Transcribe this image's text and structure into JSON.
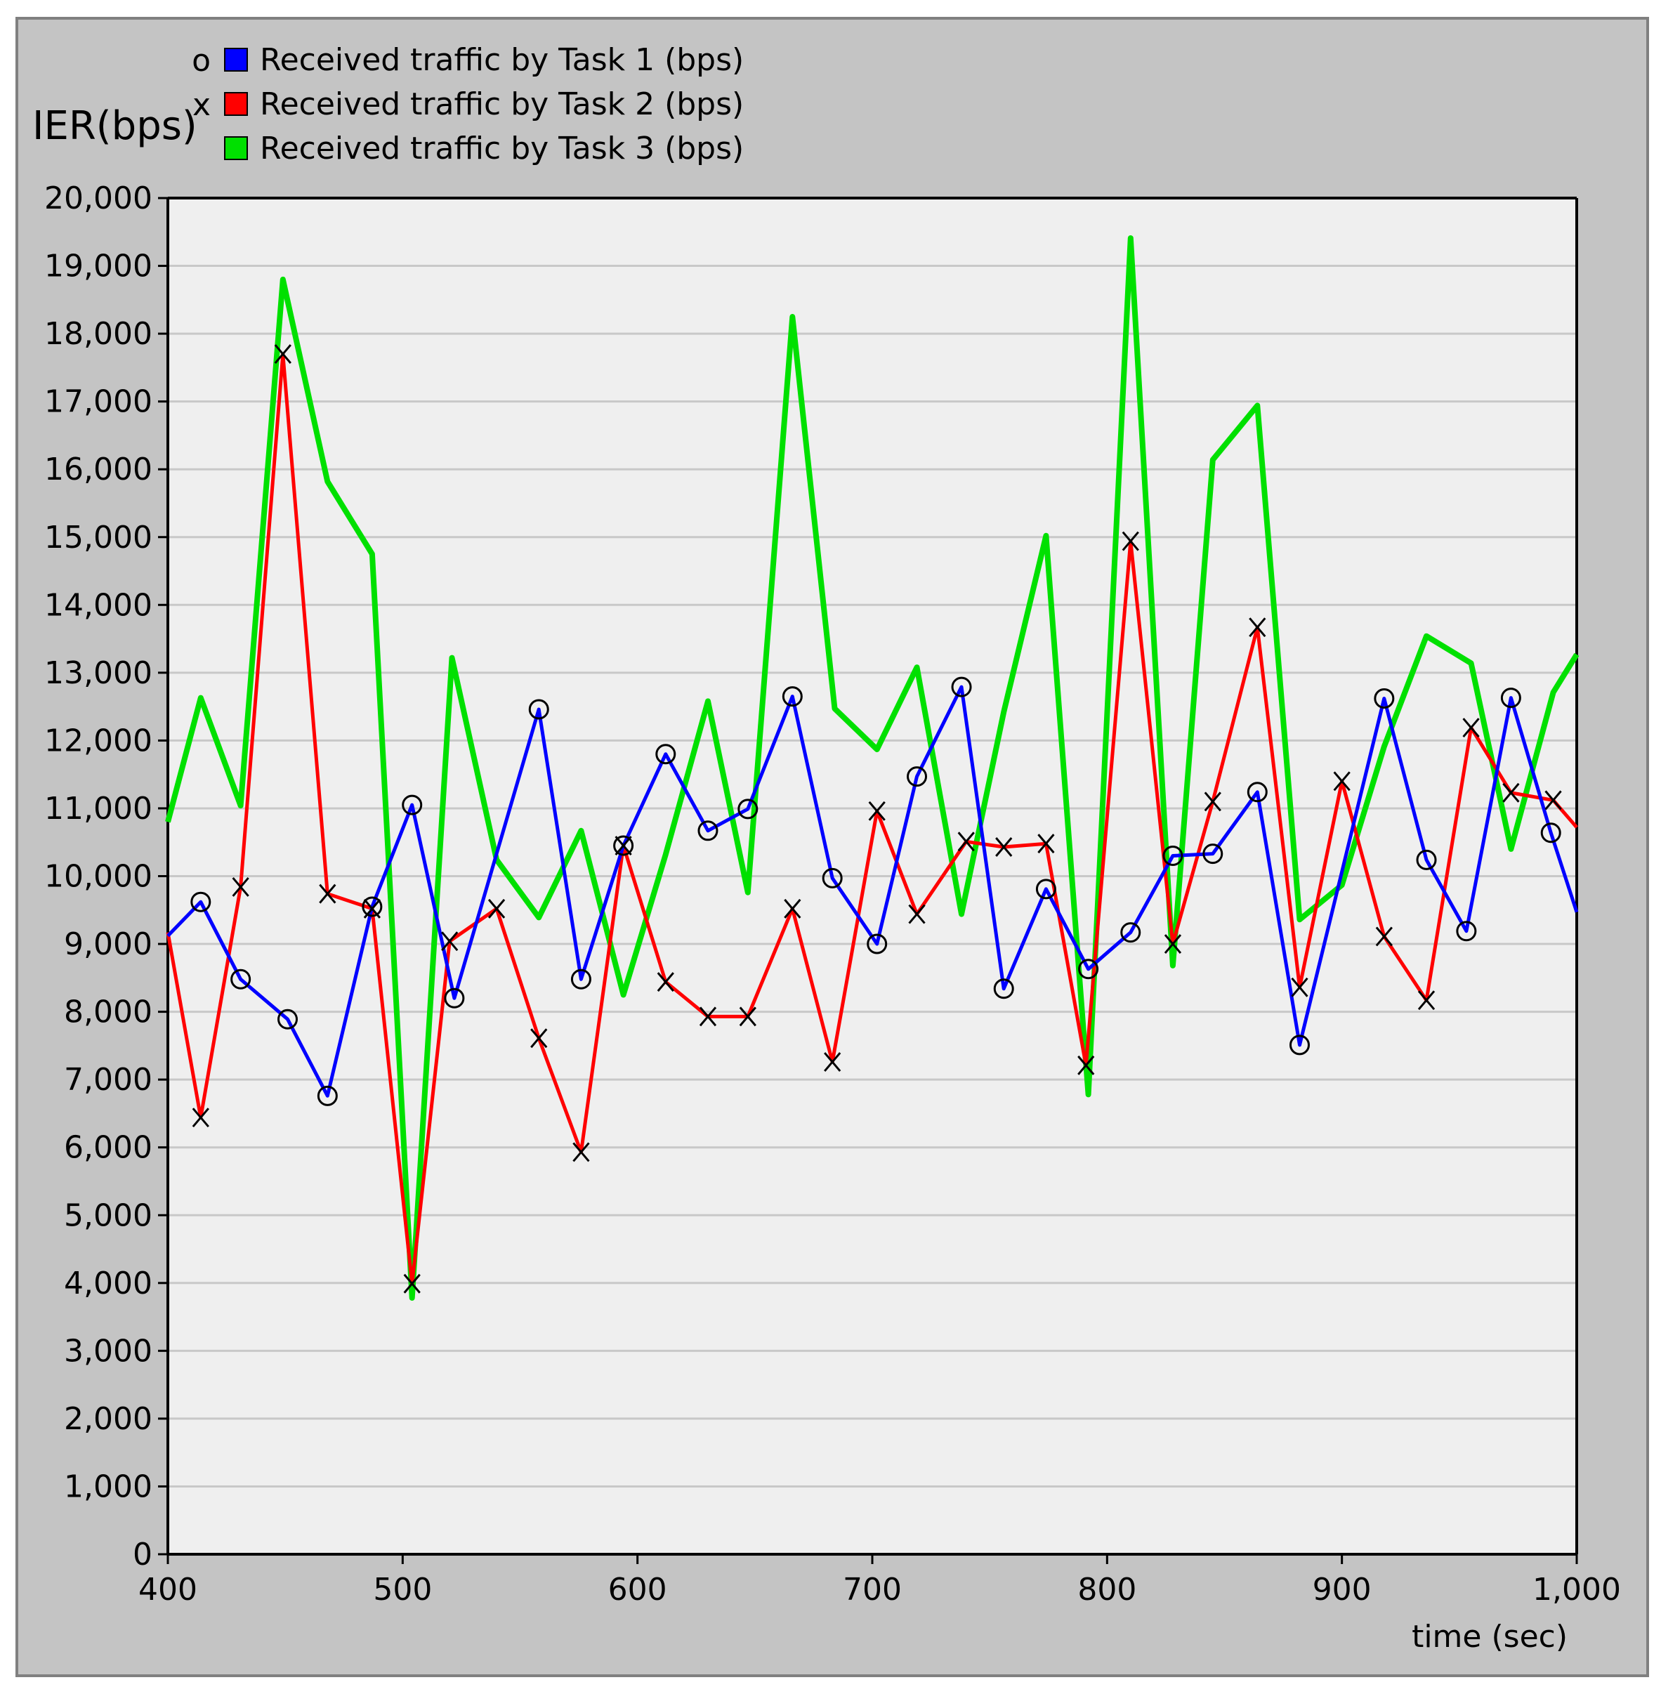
{
  "chart_data": {
    "type": "line",
    "y_axis_label": "IER(bps)",
    "x_axis_label": "time (sec)",
    "xlim": [
      400,
      1000
    ],
    "xticks": [
      400,
      500,
      600,
      700,
      800,
      900,
      {
        "value": 1000,
        "label": "1,000"
      }
    ],
    "ylim": [
      0,
      20000
    ],
    "yticks": [
      0,
      {
        "value": 1000,
        "label": "1,000"
      },
      {
        "value": 2000,
        "label": "2,000"
      },
      {
        "value": 3000,
        "label": "3,000"
      },
      {
        "value": 4000,
        "label": "4,000"
      },
      {
        "value": 5000,
        "label": "5,000"
      },
      {
        "value": 6000,
        "label": "6,000"
      },
      {
        "value": 7000,
        "label": "7,000"
      },
      {
        "value": 8000,
        "label": "8,000"
      },
      {
        "value": 9000,
        "label": "9,000"
      },
      {
        "value": 10000,
        "label": "10,000"
      },
      {
        "value": 11000,
        "label": "11,000"
      },
      {
        "value": 12000,
        "label": "12,000"
      },
      {
        "value": 13000,
        "label": "13,000"
      },
      {
        "value": 14000,
        "label": "14,000"
      },
      {
        "value": 15000,
        "label": "15,000"
      },
      {
        "value": 16000,
        "label": "16,000"
      },
      {
        "value": 17000,
        "label": "17,000"
      },
      {
        "value": 18000,
        "label": "18,000"
      },
      {
        "value": 19000,
        "label": "19,000"
      },
      {
        "value": 20000,
        "label": "20,000"
      }
    ],
    "grid": true,
    "series": [
      {
        "name": "Received traffic by Task 3 (bps)",
        "color": "#00e000",
        "x": [
          400,
          414,
          431,
          449,
          468,
          487,
          504,
          521,
          540,
          558,
          576,
          594,
          612,
          630,
          647,
          666,
          684,
          702,
          719,
          738,
          756,
          774,
          792,
          810,
          828,
          845,
          864,
          882,
          900,
          918,
          936,
          955,
          972,
          990,
          1000
        ],
        "values": [
          10800,
          12630,
          11040,
          18800,
          15820,
          14750,
          3780,
          13220,
          10240,
          9390,
          10670,
          8250,
          10320,
          12580,
          9760,
          18250,
          12470,
          11870,
          13080,
          9440,
          12420,
          15020,
          6780,
          19410,
          8680,
          16140,
          16940,
          9360,
          9870,
          11910,
          13540,
          13140,
          10400,
          12710,
          13270
        ]
      },
      {
        "name": "Received traffic by Task 2 (bps)",
        "color": "#ff0000",
        "marker": "x",
        "x": [
          400,
          414,
          431,
          449,
          468,
          487,
          504,
          520,
          540,
          558,
          576,
          594,
          612,
          630,
          647,
          666,
          683,
          702,
          719,
          740,
          756,
          774,
          791,
          810,
          828,
          845,
          864,
          882,
          900,
          918,
          936,
          955,
          972,
          990,
          1000
        ],
        "values": [
          9170,
          6440,
          9840,
          17700,
          9740,
          9520,
          3990,
          9040,
          9520,
          7610,
          5930,
          10450,
          8440,
          7930,
          7930,
          9520,
          7260,
          10960,
          9440,
          10510,
          10430,
          10480,
          7210,
          14940,
          9000,
          11100,
          13670,
          8360,
          11400,
          9110,
          8170,
          12190,
          11230,
          11120,
          10720
        ]
      },
      {
        "name": "Received traffic by Task 1 (bps)",
        "color": "#0000ff",
        "marker": "o",
        "x": [
          400,
          414,
          431,
          451,
          468,
          487,
          504,
          522,
          558,
          576,
          594,
          612,
          630,
          647,
          666,
          683,
          702,
          719,
          738,
          756,
          774,
          792,
          810,
          828,
          845,
          864,
          882,
          918,
          936,
          953,
          972,
          989,
          1000
        ],
        "values": [
          9120,
          9620,
          8480,
          7890,
          6760,
          9550,
          11050,
          8200,
          12460,
          8480,
          10450,
          11800,
          10670,
          10990,
          12650,
          9970,
          9000,
          11470,
          12790,
          8340,
          9810,
          8630,
          9170,
          10300,
          10330,
          11240,
          7510,
          12620,
          10240,
          9190,
          12630,
          10640,
          9470
        ]
      }
    ],
    "legend_order": [
      2,
      1,
      0
    ]
  }
}
